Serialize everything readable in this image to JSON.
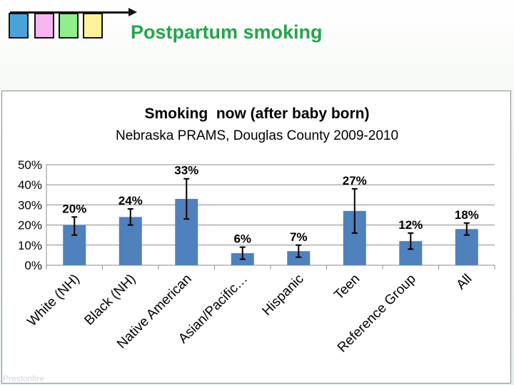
{
  "header": {
    "title": "Postpartum smoking",
    "squares": [
      {
        "name": "blue-square",
        "color": "#4aa3d8"
      },
      {
        "name": "pink-square",
        "color": "#f7b6f2"
      },
      {
        "name": "green-square",
        "color": "#8fef8a"
      },
      {
        "name": "yellow-square",
        "color": "#fbf39a"
      }
    ]
  },
  "chart_data": {
    "type": "bar",
    "title": "Smoking  now (after baby born)",
    "subtitle": "Nebraska PRAMS, Douglas County 2009-2010",
    "categories": [
      "White (NH)",
      "Black (NH)",
      "Native American",
      "Asian/Pacific…",
      "Hispanic",
      "Teen",
      "Reference Group",
      "All"
    ],
    "values": [
      20,
      24,
      33,
      6,
      7,
      27,
      12,
      18
    ],
    "error_low": [
      15,
      20,
      23,
      3,
      4,
      16,
      8,
      15
    ],
    "error_high": [
      24,
      28,
      43,
      9,
      10,
      38,
      16,
      21
    ],
    "data_labels": [
      "20%",
      "24%",
      "33%",
      "6%",
      "7%",
      "27%",
      "12%",
      "18%"
    ],
    "ylim": [
      0,
      50
    ],
    "yticks": [
      0,
      10,
      20,
      30,
      40,
      50
    ],
    "ytick_labels": [
      "0%",
      "10%",
      "20%",
      "30%",
      "40%",
      "50%"
    ],
    "bar_color": "#4f81bd",
    "grid": true,
    "legend": "none"
  },
  "footer_watermark": "Prestonfire"
}
